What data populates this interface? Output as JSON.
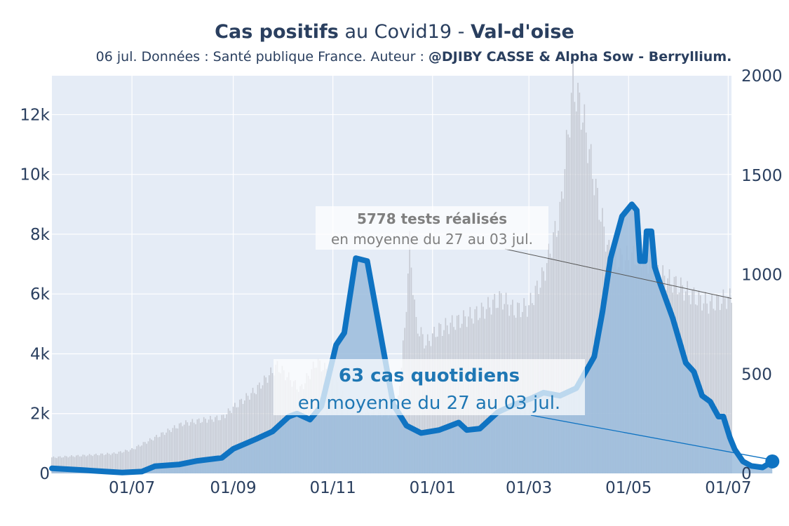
{
  "header": {
    "title_bold_1": "Cas positifs",
    "title_mid": " au Covid19 - ",
    "title_bold_2": "Val-d'oise",
    "subtitle_plain": "06 jul. Données : Santé publique France. Auteur : ",
    "subtitle_bold": "@DJIBY CASSE & Alpha Sow - Berryllium."
  },
  "colors": {
    "plot_bg": "#e5ecf6",
    "grid": "#ffffff",
    "cases_line": "#0f73c2",
    "cases_fill": "#9bbcdc",
    "tests_bars": "#c6cad3",
    "text": "#2a3f5f",
    "annotation_tests": "#7f7f7f",
    "annotation_cases": "#1f77b4"
  },
  "chart_data": {
    "type": "line",
    "x_start": "2020-05-13",
    "x_end": "2021-07-03",
    "x_ticks": [
      "2020-07-01",
      "2020-09-01",
      "2020-11-01",
      "2021-01-01",
      "2021-03-01",
      "2021-05-01",
      "2021-07-01"
    ],
    "x_tick_labels": [
      "01/07",
      "01/09",
      "01/11",
      "01/01",
      "01/03",
      "01/05",
      "01/07"
    ],
    "y_left": {
      "range": [
        0,
        13300
      ],
      "ticks": [
        0,
        2000,
        4000,
        6000,
        8000,
        10000,
        12000
      ],
      "tick_labels": [
        "0",
        "2k",
        "4k",
        "6k",
        "8k",
        "10k",
        "12k"
      ]
    },
    "y_right": {
      "range": [
        0,
        2000
      ],
      "ticks": [
        0,
        500,
        1000,
        1500,
        2000
      ],
      "tick_labels": [
        "0",
        "500",
        "1000",
        "1500",
        "2000"
      ]
    },
    "series": [
      {
        "axis": "right",
        "style": "bars",
        "points": [
          [
            "2020-05-13",
            80
          ],
          [
            "2020-06-01",
            90
          ],
          [
            "2020-06-20",
            100
          ],
          [
            "2020-07-01",
            120
          ],
          [
            "2020-07-15",
            180
          ],
          [
            "2020-08-01",
            250
          ],
          [
            "2020-08-15",
            270
          ],
          [
            "2020-08-25",
            280
          ],
          [
            "2020-09-01",
            330
          ],
          [
            "2020-09-15",
            420
          ],
          [
            "2020-09-28",
            540
          ],
          [
            "2020-10-05",
            480
          ],
          [
            "2020-10-12",
            420
          ],
          [
            "2020-10-22",
            560
          ],
          [
            "2020-10-31",
            500
          ],
          [
            "2020-11-08",
            380
          ],
          [
            "2020-11-20",
            310
          ],
          [
            "2020-12-01",
            300
          ],
          [
            "2020-12-10",
            290
          ],
          [
            "2020-12-15",
            720
          ],
          [
            "2020-12-18",
            1150
          ],
          [
            "2020-12-22",
            750
          ],
          [
            "2020-12-28",
            650
          ],
          [
            "2021-01-04",
            720
          ],
          [
            "2021-01-15",
            760
          ],
          [
            "2021-01-30",
            810
          ],
          [
            "2021-02-12",
            880
          ],
          [
            "2021-02-20",
            820
          ],
          [
            "2021-03-01",
            840
          ],
          [
            "2021-03-10",
            1000
          ],
          [
            "2021-03-20",
            1300
          ],
          [
            "2021-03-28",
            1960
          ],
          [
            "2021-04-03",
            1800
          ],
          [
            "2021-04-12",
            1380
          ],
          [
            "2021-04-20",
            1070
          ],
          [
            "2021-04-30",
            1080
          ],
          [
            "2021-05-10",
            1100
          ],
          [
            "2021-05-20",
            1000
          ],
          [
            "2021-06-01",
            940
          ],
          [
            "2021-06-12",
            880
          ],
          [
            "2021-06-20",
            850
          ],
          [
            "2021-06-30",
            880
          ],
          [
            "2021-07-03",
            880
          ]
        ]
      },
      {
        "axis": "left",
        "style": "line-area",
        "points": [
          [
            "2020-05-13",
            170
          ],
          [
            "2020-06-01",
            110
          ],
          [
            "2020-06-15",
            60
          ],
          [
            "2020-06-25",
            30
          ],
          [
            "2020-07-07",
            60
          ],
          [
            "2020-07-15",
            240
          ],
          [
            "2020-07-30",
            300
          ],
          [
            "2020-08-10",
            420
          ],
          [
            "2020-08-25",
            520
          ],
          [
            "2020-09-01",
            820
          ],
          [
            "2020-09-15",
            1150
          ],
          [
            "2020-09-25",
            1400
          ],
          [
            "2020-10-05",
            1900
          ],
          [
            "2020-10-10",
            2000
          ],
          [
            "2020-10-18",
            1800
          ],
          [
            "2020-10-25",
            2250
          ],
          [
            "2020-11-03",
            4300
          ],
          [
            "2020-11-08",
            4700
          ],
          [
            "2020-11-15",
            7200
          ],
          [
            "2020-11-22",
            7100
          ],
          [
            "2020-11-30",
            4700
          ],
          [
            "2020-12-08",
            2300
          ],
          [
            "2020-12-16",
            1600
          ],
          [
            "2020-12-25",
            1350
          ],
          [
            "2021-01-05",
            1450
          ],
          [
            "2021-01-17",
            1700
          ],
          [
            "2021-01-22",
            1450
          ],
          [
            "2021-01-30",
            1500
          ],
          [
            "2021-02-10",
            2050
          ],
          [
            "2021-02-20",
            2300
          ],
          [
            "2021-03-02",
            2500
          ],
          [
            "2021-03-10",
            2700
          ],
          [
            "2021-03-20",
            2600
          ],
          [
            "2021-03-30",
            2850
          ],
          [
            "2021-04-10",
            3900
          ],
          [
            "2021-04-15",
            5400
          ],
          [
            "2021-04-20",
            7200
          ],
          [
            "2021-04-27",
            8600
          ],
          [
            "2021-05-03",
            9000
          ],
          [
            "2021-05-06",
            8800
          ],
          [
            "2021-05-08",
            7100
          ],
          [
            "2021-05-11",
            7100
          ],
          [
            "2021-05-12",
            8100
          ],
          [
            "2021-05-15",
            8100
          ],
          [
            "2021-05-17",
            6900
          ],
          [
            "2021-05-20",
            6400
          ],
          [
            "2021-05-28",
            5200
          ],
          [
            "2021-06-05",
            3700
          ],
          [
            "2021-06-10",
            3400
          ],
          [
            "2021-06-15",
            2600
          ],
          [
            "2021-06-20",
            2400
          ],
          [
            "2021-06-25",
            1900
          ],
          [
            "2021-06-28",
            1900
          ],
          [
            "2021-07-02",
            1200
          ],
          [
            "2021-07-05",
            800
          ],
          [
            "2021-07-10",
            400
          ],
          [
            "2021-07-15",
            250
          ],
          [
            "2021-07-22",
            200
          ],
          [
            "2021-07-28",
            400
          ]
        ]
      }
    ],
    "annotations": [
      {
        "bold": "5778 tests réalisés",
        "sub": "en moyenne du 27 au 03 jul."
      },
      {
        "bold": "63 cas quotidiens",
        "sub": "en moyenne du 27 au 03 jul."
      }
    ]
  }
}
